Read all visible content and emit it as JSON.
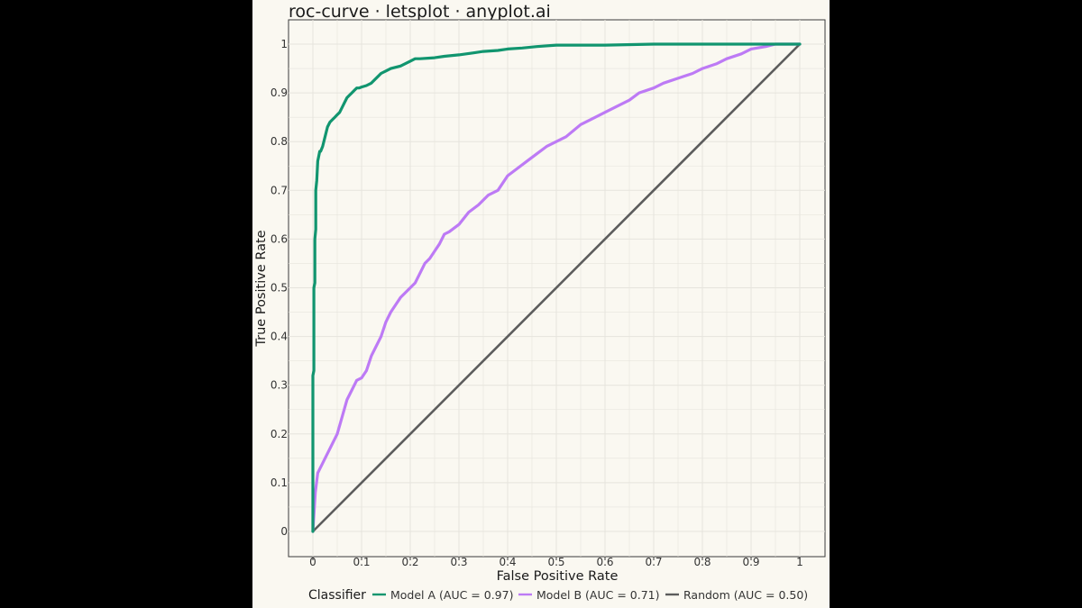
{
  "title": "roc-curve · letsplot · anyplot.ai",
  "colors": {
    "page_background": "#000000",
    "plot_background": "#FAF8F1",
    "grid": "#E6E4DD",
    "model_a": "#11956F",
    "model_b": "#BD7AF5",
    "random": "#5C5C5C"
  },
  "chart_data": {
    "type": "line",
    "title": "roc-curve · letsplot · anyplot.ai",
    "xlabel": "False Positive Rate",
    "ylabel": "True Positive Rate",
    "xlim": [
      0,
      1
    ],
    "ylim": [
      0,
      1
    ],
    "x_ticks": [
      "0",
      "0.1",
      "0.2",
      "0.3",
      "0.4",
      "0.5",
      "0.6",
      "0.7",
      "0.8",
      "0.9",
      "1"
    ],
    "y_ticks": [
      "0",
      "0.1",
      "0.2",
      "0.3",
      "0.4",
      "0.5",
      "0.6",
      "0.7",
      "0.8",
      "0.9",
      "1"
    ],
    "grid": true,
    "legend": {
      "title": "Classifier",
      "position": "bottom"
    },
    "series": [
      {
        "name": "Model A (AUC = 0.97)",
        "color": "#11956F",
        "x": [
          0,
          0,
          0.002,
          0.002,
          0.004,
          0.004,
          0.006,
          0.006,
          0.008,
          0.01,
          0.012,
          0.014,
          0.016,
          0.02,
          0.025,
          0.03,
          0.035,
          0.04,
          0.045,
          0.05,
          0.055,
          0.06,
          0.065,
          0.07,
          0.075,
          0.08,
          0.085,
          0.09,
          0.095,
          0.1,
          0.11,
          0.12,
          0.13,
          0.14,
          0.15,
          0.16,
          0.18,
          0.2,
          0.21,
          0.22,
          0.25,
          0.27,
          0.3,
          0.33,
          0.35,
          0.38,
          0.4,
          0.43,
          0.46,
          0.5,
          0.6,
          0.7,
          0.8,
          0.9,
          1.0
        ],
        "y": [
          0,
          0.32,
          0.33,
          0.5,
          0.51,
          0.6,
          0.62,
          0.7,
          0.72,
          0.76,
          0.77,
          0.78,
          0.78,
          0.79,
          0.81,
          0.83,
          0.84,
          0.845,
          0.85,
          0.855,
          0.86,
          0.87,
          0.88,
          0.89,
          0.895,
          0.9,
          0.905,
          0.91,
          0.91,
          0.912,
          0.915,
          0.92,
          0.93,
          0.94,
          0.945,
          0.95,
          0.955,
          0.965,
          0.97,
          0.97,
          0.972,
          0.975,
          0.978,
          0.982,
          0.985,
          0.987,
          0.99,
          0.992,
          0.995,
          0.998,
          0.998,
          1.0,
          1.0,
          1.0,
          1.0
        ]
      },
      {
        "name": "Model B (AUC = 0.71)",
        "color": "#BD7AF5",
        "x": [
          0,
          0.005,
          0.01,
          0.015,
          0.02,
          0.03,
          0.04,
          0.05,
          0.06,
          0.07,
          0.08,
          0.09,
          0.1,
          0.11,
          0.12,
          0.13,
          0.14,
          0.15,
          0.16,
          0.17,
          0.18,
          0.19,
          0.2,
          0.21,
          0.22,
          0.23,
          0.24,
          0.25,
          0.26,
          0.27,
          0.28,
          0.3,
          0.32,
          0.34,
          0.36,
          0.38,
          0.4,
          0.42,
          0.44,
          0.46,
          0.48,
          0.5,
          0.52,
          0.55,
          0.58,
          0.6,
          0.63,
          0.65,
          0.67,
          0.7,
          0.72,
          0.75,
          0.78,
          0.8,
          0.83,
          0.85,
          0.88,
          0.9,
          0.93,
          0.95,
          0.97,
          1.0
        ],
        "y": [
          0,
          0.08,
          0.12,
          0.13,
          0.14,
          0.16,
          0.18,
          0.2,
          0.235,
          0.27,
          0.29,
          0.31,
          0.315,
          0.33,
          0.36,
          0.38,
          0.4,
          0.43,
          0.45,
          0.465,
          0.48,
          0.49,
          0.5,
          0.51,
          0.53,
          0.55,
          0.56,
          0.575,
          0.59,
          0.61,
          0.615,
          0.63,
          0.655,
          0.67,
          0.69,
          0.7,
          0.73,
          0.745,
          0.76,
          0.775,
          0.79,
          0.8,
          0.81,
          0.835,
          0.85,
          0.86,
          0.875,
          0.885,
          0.9,
          0.91,
          0.92,
          0.93,
          0.94,
          0.95,
          0.96,
          0.97,
          0.98,
          0.99,
          0.995,
          1.0,
          1.0,
          1.0
        ]
      },
      {
        "name": "Random (AUC = 0.50)",
        "color": "#5C5C5C",
        "x": [
          0,
          1
        ],
        "y": [
          0,
          1
        ]
      }
    ]
  }
}
